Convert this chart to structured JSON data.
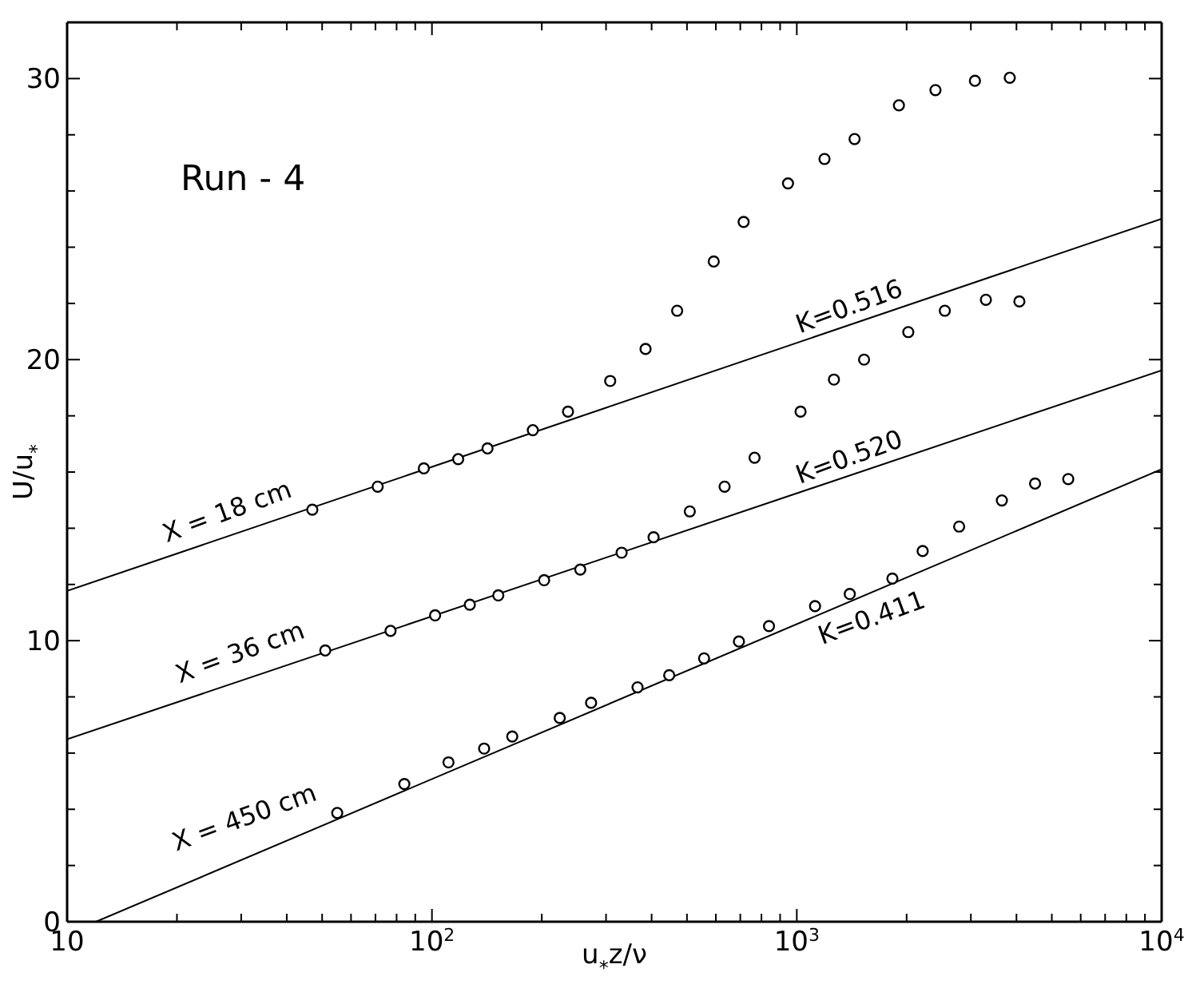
{
  "chart_data": {
    "type": "scatter",
    "title": "Run - 4",
    "xlabel": "u$_{*}$z/ν",
    "ylabel": "U/u$_{*}$",
    "log": "x",
    "marker": "circle",
    "grid": false,
    "legend": false,
    "xlim": [
      10,
      10000
    ],
    "ylim": [
      0,
      32
    ],
    "xticks": [
      {
        "value": 10,
        "label": "10"
      },
      {
        "value": 20,
        "label": null
      },
      {
        "value": 30,
        "label": null
      },
      {
        "value": 40,
        "label": null
      },
      {
        "value": 50,
        "label": null
      },
      {
        "value": 60,
        "label": null
      },
      {
        "value": 70,
        "label": null
      },
      {
        "value": 80,
        "label": null
      },
      {
        "value": 90,
        "label": null
      },
      {
        "value": 100,
        "label": "10$^{2}$"
      },
      {
        "value": 200,
        "label": null
      },
      {
        "value": 300,
        "label": null
      },
      {
        "value": 400,
        "label": null
      },
      {
        "value": 500,
        "label": null
      },
      {
        "value": 600,
        "label": null
      },
      {
        "value": 700,
        "label": null
      },
      {
        "value": 800,
        "label": null
      },
      {
        "value": 900,
        "label": null
      },
      {
        "value": 1000,
        "label": "10$^{3}$"
      },
      {
        "value": 2000,
        "label": null
      },
      {
        "value": 3000,
        "label": null
      },
      {
        "value": 4000,
        "label": null
      },
      {
        "value": 5000,
        "label": null
      },
      {
        "value": 6000,
        "label": null
      },
      {
        "value": 7000,
        "label": null
      },
      {
        "value": 8000,
        "label": null
      },
      {
        "value": 9000,
        "label": null
      },
      {
        "value": 10000,
        "label": "10$^{4}$"
      }
    ],
    "yticks": [
      0,
      {
        "value": 2,
        "label": null
      },
      {
        "value": 4,
        "label": null
      },
      {
        "value": 6,
        "label": null
      },
      {
        "value": 8,
        "label": null
      },
      10,
      {
        "value": 12,
        "label": null
      },
      {
        "value": 14,
        "label": null
      },
      {
        "value": 16,
        "label": null
      },
      {
        "value": 18,
        "label": null
      },
      20,
      {
        "value": 22,
        "label": null
      },
      {
        "value": 24,
        "label": null
      },
      {
        "value": 26,
        "label": null
      },
      {
        "value": 28,
        "label": null
      },
      30
    ],
    "series": [
      {
        "name": "X = 18 cm",
        "color": "#000000",
        "x": [
          47,
          71,
          95,
          118,
          142,
          189,
          236,
          308,
          385,
          470,
          592,
          715,
          946,
          1191,
          1440,
          1905,
          2399,
          3078,
          3834
        ],
        "values": [
          14.66,
          15.48,
          16.13,
          16.46,
          16.84,
          17.49,
          18.15,
          19.24,
          20.38,
          21.74,
          23.49,
          24.9,
          26.27,
          27.14,
          27.85,
          29.05,
          29.59,
          29.92,
          30.03
        ]
      },
      {
        "name": "X = 36 cm",
        "color": "#000000",
        "x": [
          51,
          77,
          102,
          127,
          152,
          203,
          255,
          331,
          405,
          509,
          634,
          766,
          1024,
          1264,
          1529,
          2021,
          2545,
          3298,
          4074
        ],
        "values": [
          9.65,
          10.35,
          10.9,
          11.28,
          11.61,
          12.15,
          12.53,
          13.13,
          13.68,
          14.6,
          15.48,
          16.51,
          18.15,
          19.29,
          20.0,
          20.98,
          21.74,
          22.13,
          22.07
        ]
      },
      {
        "name": "X = 450 cm",
        "color": "#000000",
        "x": [
          55,
          84,
          111,
          139,
          166,
          224,
          273,
          366,
          447,
          557,
          694,
          839,
          1122,
          1397,
          1828,
          2213,
          2786,
          3648,
          4498,
          5546
        ],
        "values": [
          3.87,
          4.9,
          5.67,
          6.16,
          6.59,
          7.25,
          7.79,
          8.34,
          8.77,
          9.37,
          9.97,
          10.52,
          11.23,
          11.66,
          12.21,
          13.19,
          14.06,
          14.99,
          15.59,
          15.75
        ]
      },
      {
        "name": "K=0.516",
        "type": "line",
        "color": "#000000",
        "marker": "none",
        "x": [
          10,
          10000
        ],
        "values": [
          11.77,
          25.01
        ]
      },
      {
        "name": "K=0.520",
        "type": "line",
        "color": "#000000",
        "marker": "none",
        "x": [
          10,
          10000
        ],
        "values": [
          6.49,
          19.62
        ]
      },
      {
        "name": "K=0.411",
        "type": "line",
        "color": "#000000",
        "marker": "none",
        "x": [
          12,
          10000
        ],
        "values": [
          0,
          16.1
        ]
      }
    ]
  }
}
